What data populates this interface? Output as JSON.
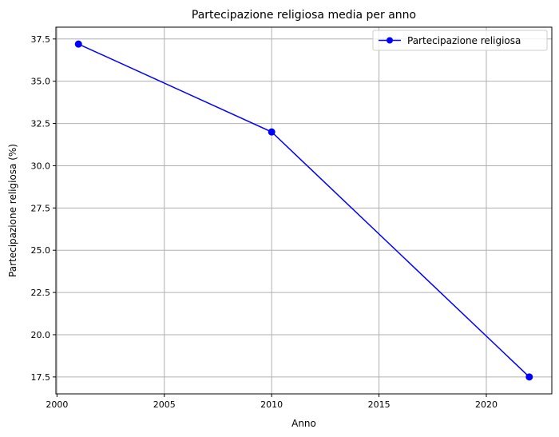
{
  "chart_data": {
    "type": "line",
    "title": "Partecipazione religiosa media per anno",
    "xlabel": "Anno",
    "ylabel": "Partecipazione religiosa (%)",
    "xlim": [
      1999.95,
      2023.05
    ],
    "ylim": [
      16.5,
      38.2
    ],
    "xticks": [
      2000,
      2005,
      2010,
      2015,
      2020
    ],
    "xtick_labels": [
      "2000",
      "2005",
      "2010",
      "2015",
      "2020"
    ],
    "yticks": [
      17.5,
      20.0,
      22.5,
      25.0,
      27.5,
      30.0,
      32.5,
      35.0,
      37.5
    ],
    "ytick_labels": [
      "17.5",
      "20.0",
      "22.5",
      "25.0",
      "27.5",
      "30.0",
      "32.5",
      "35.0",
      "37.5"
    ],
    "grid": true,
    "legend_position": "top-right",
    "series": [
      {
        "name": "Partecipazione religiosa",
        "color": "#0000ff",
        "marker": "circle",
        "x": [
          2001,
          2010,
          2022
        ],
        "y": [
          37.2,
          32.0,
          17.5
        ]
      }
    ]
  }
}
